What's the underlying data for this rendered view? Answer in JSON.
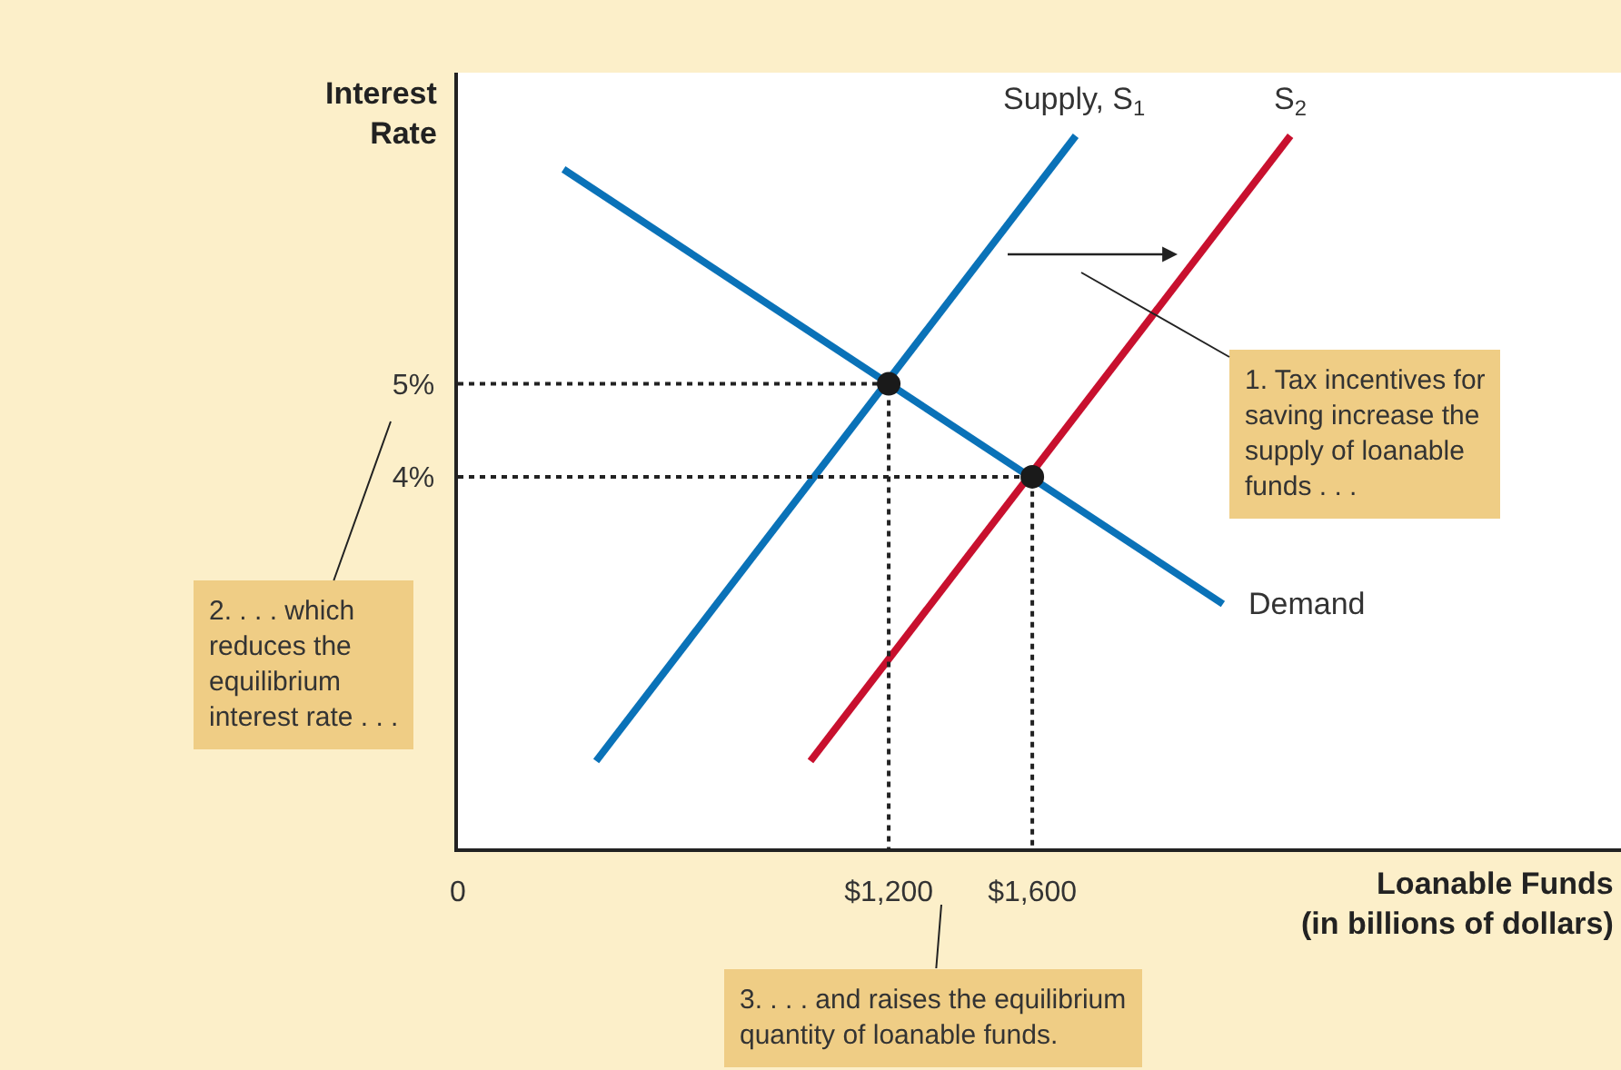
{
  "chart_data": {
    "type": "line",
    "xlabel": "Loanable Funds\n(in billions of dollars)",
    "ylabel": "Interest\nRate",
    "xlim": [
      0,
      3240
    ],
    "ylim": [
      0,
      8.35
    ],
    "xticks": [
      0,
      {
        "value": 1200,
        "label": "$1,200"
      },
      {
        "value": 1600,
        "label": "$1,600"
      }
    ],
    "yticks": [
      {
        "value": 4,
        "label": "4%"
      },
      {
        "value": 5,
        "label": "5%"
      }
    ],
    "legend": false,
    "line_style": "solid",
    "marker": "none",
    "series": [
      {
        "name": "Supply, S$_{1}$",
        "color": "#0a72b8",
        "x": [
          385,
          1721
        ],
        "values": [
          0.94,
          7.67
        ]
      },
      {
        "name": "S$_{2}$",
        "color": "#c8102e",
        "x": [
          982,
          2319
        ],
        "values": [
          0.94,
          7.67
        ]
      },
      {
        "name": "Demand",
        "color": "#0a72b8",
        "x": [
          294,
          2131
        ],
        "values": [
          7.31,
          2.63
        ]
      },
      {
        "color": "#222222",
        "x": [
          0,
          1200,
          1200
        ],
        "values": [
          5,
          5,
          0
        ],
        "line_style": "dotted"
      },
      {
        "color": "#222222",
        "x": [
          0,
          1600,
          1600
        ],
        "values": [
          4,
          4,
          0
        ],
        "line_style": "dotted"
      },
      {
        "type": "scatter",
        "color": "#1a1a1a",
        "marker": "circle",
        "x": [
          1200,
          1600
        ],
        "values": [
          5,
          4
        ]
      }
    ],
    "annotations": [
      "1. Tax incentives for\nsaving increase the\nsupply of loanable\nfunds . . .",
      "2. . . . which\nreduces the\nequilibrium\ninterest rate . . .",
      "3. . . . and raises the equilibrium\nquantity of loanable funds."
    ]
  }
}
